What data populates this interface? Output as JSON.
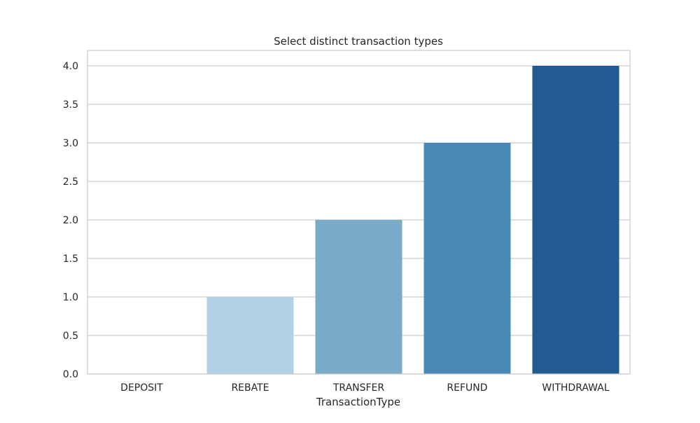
{
  "chart_data": {
    "type": "bar",
    "title": "Select distinct transaction types",
    "xlabel": "TransactionType",
    "ylabel": "",
    "categories": [
      "DEPOSIT",
      "REBATE",
      "TRANSFER",
      "REFUND",
      "WITHDRAWAL"
    ],
    "values": [
      0,
      1,
      2,
      3,
      4
    ],
    "colors": [
      "#ddeaf7",
      "#b1d0e4",
      "#79abc9",
      "#4a88b5",
      "#225b92"
    ],
    "ylim": [
      0,
      4.2
    ],
    "yticks": [
      0.0,
      0.5,
      1.0,
      1.5,
      2.0,
      2.5,
      3.0,
      3.5,
      4.0
    ],
    "ytick_labels": [
      "0.0",
      "0.5",
      "1.0",
      "1.5",
      "2.0",
      "2.5",
      "3.0",
      "3.5",
      "4.0"
    ],
    "grid": true,
    "grid_color": "#cccccc",
    "frame_color": "#cccccc"
  }
}
